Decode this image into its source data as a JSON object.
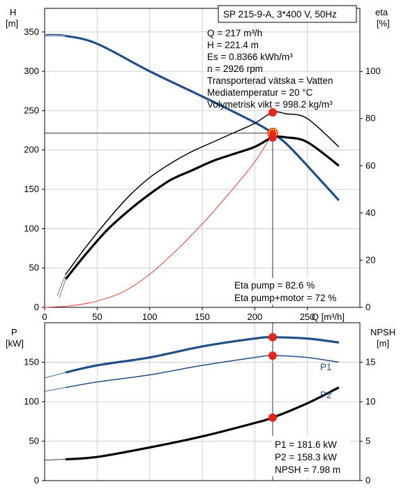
{
  "chart_data": [
    {
      "type": "line",
      "title": "SP 215-9-A, 3*400 V, 50Hz",
      "xlabel": "Q [m³/h]",
      "ylabel_left": "H",
      "ylabel_left_unit": "[m]",
      "ylabel_right": "eta",
      "ylabel_right_unit": "[%]",
      "xlim": [
        0,
        300
      ],
      "ylim_left": [
        0,
        380
      ],
      "ylim_right": [
        0,
        126.67
      ],
      "x_ticks": [
        "0",
        "50",
        "100",
        "150",
        "200",
        "250"
      ],
      "y_left_ticks": [
        "0",
        "50",
        "100",
        "150",
        "200",
        "250",
        "300",
        "350"
      ],
      "y_right_ticks": [
        "0",
        "20",
        "40",
        "60",
        "80",
        "100"
      ],
      "grid": true,
      "info": [
        "Q = 217 m³/h",
        "H = 221.4 m",
        "Es = 0.8366 kWh/m³",
        "n = 2926 rpm",
        "Transporterad vätska = Vatten",
        "Mediatemperatur = 20 °C",
        "Volymetrisk vikt = 998.2 kg/m³"
      ],
      "annotations": [
        "Eta pump = 82.6 %",
        "Eta pump+motor = 72 %"
      ],
      "duty_point": {
        "Q": 217,
        "H": 221.4,
        "eta_pump": 82.6,
        "eta_pump_motor": 72
      },
      "colors": {
        "head": "#1f4f86",
        "duty_marker": "#e8241c",
        "duty_halo": "#f2e600",
        "system": "#e8241c"
      },
      "series": [
        {
          "axis": "left",
          "x": [
            0,
            20,
            50,
            100,
            150,
            200,
            217,
            230,
            250,
            280
          ],
          "values": [
            346,
            345,
            335,
            300,
            268,
            235,
            221.4,
            208,
            180,
            136
          ]
        },
        {
          "axis": "left",
          "x": [
            0,
            25,
            50,
            75,
            100,
            125,
            150,
            175,
            200,
            217
          ],
          "values": [
            0,
            2,
            8,
            20,
            42,
            72,
            106,
            144,
            185,
            221.4
          ]
        },
        {
          "axis": "right",
          "x": [
            20,
            40,
            60,
            80,
            100,
            120,
            140,
            160,
            180,
            200,
            217,
            230,
            250,
            280
          ],
          "values": [
            14,
            26,
            37,
            47,
            55,
            61,
            66,
            70,
            74,
            78,
            82.6,
            82,
            80,
            68
          ]
        },
        {
          "axis": "right",
          "x": [
            20,
            40,
            60,
            80,
            100,
            120,
            140,
            160,
            180,
            200,
            217,
            230,
            250,
            280
          ],
          "values": [
            12,
            23,
            33,
            41,
            48,
            54,
            58,
            62,
            65,
            68,
            72,
            72,
            70,
            60
          ]
        }
      ]
    },
    {
      "type": "line",
      "title": "",
      "xlabel": "",
      "ylabel_left": "P",
      "ylabel_left_unit": "[kW]",
      "ylabel_right": "NPSH",
      "ylabel_right_unit": "[m]",
      "xlim": [
        0,
        300
      ],
      "ylim_left": [
        0,
        200
      ],
      "ylim_right": [
        0,
        20
      ],
      "y_left_ticks": [
        "0",
        "50",
        "100",
        "150"
      ],
      "y_right_ticks": [
        "0",
        "5",
        "10",
        "15"
      ],
      "grid": true,
      "annotations": [
        "P1 = 181.6 kW",
        "P2 = 158.3 kW",
        "NPSH = 7.98 m"
      ],
      "duty_point": {
        "Q": 217,
        "P1": 181.6,
        "P2": 158.3,
        "NPSH": 7.98
      },
      "colors": {
        "p1": "#1f4f86",
        "p2": "#1f4f86",
        "npsh": "#000000"
      },
      "series": [
        {
          "name": "P1",
          "axis": "left",
          "x": [
            0,
            20,
            50,
            100,
            150,
            200,
            217,
            250,
            280
          ],
          "values": [
            130,
            137,
            146,
            156,
            170,
            180,
            181.6,
            180,
            175
          ]
        },
        {
          "name": "P2",
          "axis": "left",
          "x": [
            0,
            20,
            50,
            100,
            150,
            200,
            217,
            250,
            280
          ],
          "values": [
            113,
            118,
            125,
            134,
            146,
            156,
            158.3,
            156,
            150
          ]
        },
        {
          "axis": "right",
          "x": [
            0,
            20,
            50,
            100,
            150,
            200,
            217,
            250,
            280
          ],
          "values": [
            2.6,
            2.7,
            3.0,
            4.2,
            5.6,
            7.3,
            7.98,
            9.8,
            11.8
          ]
        }
      ]
    }
  ]
}
